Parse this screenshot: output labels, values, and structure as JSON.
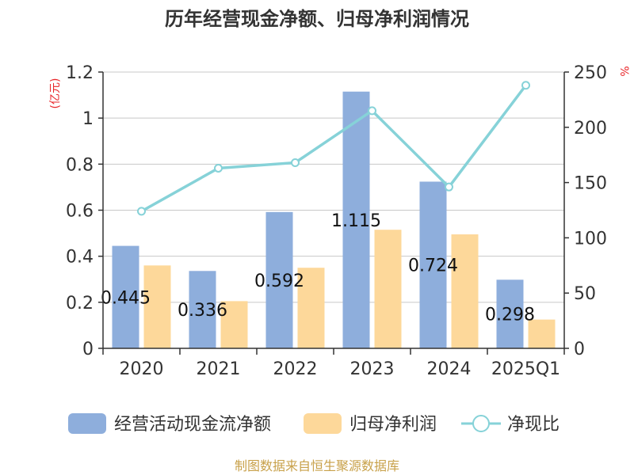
{
  "chart_data": {
    "type": "bar",
    "title": "历年经营现金净额、归母净利润情况",
    "categories": [
      "2020",
      "2021",
      "2022",
      "2023",
      "2024",
      "2025Q1"
    ],
    "y_left": {
      "unit": "(亿元)",
      "ylim": [
        0,
        1.2
      ],
      "ticks": [
        "0",
        "0.2",
        "0.4",
        "0.6",
        "0.8",
        "1",
        "1.2"
      ]
    },
    "y_right": {
      "unit": "%",
      "ylim": [
        0,
        250
      ],
      "ticks": [
        "0",
        "50",
        "100",
        "150",
        "200",
        "250"
      ]
    },
    "series": [
      {
        "name": "经营活动现金流净额",
        "type": "bar",
        "axis": "left",
        "color": "#8eaedc",
        "values": [
          0.445,
          0.336,
          0.592,
          1.115,
          0.724,
          0.298
        ],
        "labels": [
          "0.445",
          "0.336",
          "0.592",
          "1.115",
          "0.724",
          "0.298"
        ]
      },
      {
        "name": "归母净利润",
        "type": "bar",
        "axis": "left",
        "color": "#fdd89a",
        "values": [
          0.36,
          0.205,
          0.35,
          0.515,
          0.495,
          0.125
        ]
      },
      {
        "name": "净现比",
        "type": "line",
        "axis": "right",
        "color": "#86d2d8",
        "values": [
          124,
          163,
          168,
          215,
          146,
          238
        ]
      }
    ],
    "grid": true,
    "legend_position": "bottom"
  },
  "footer": {
    "source": "制图数据来自恒生聚源数据库"
  }
}
